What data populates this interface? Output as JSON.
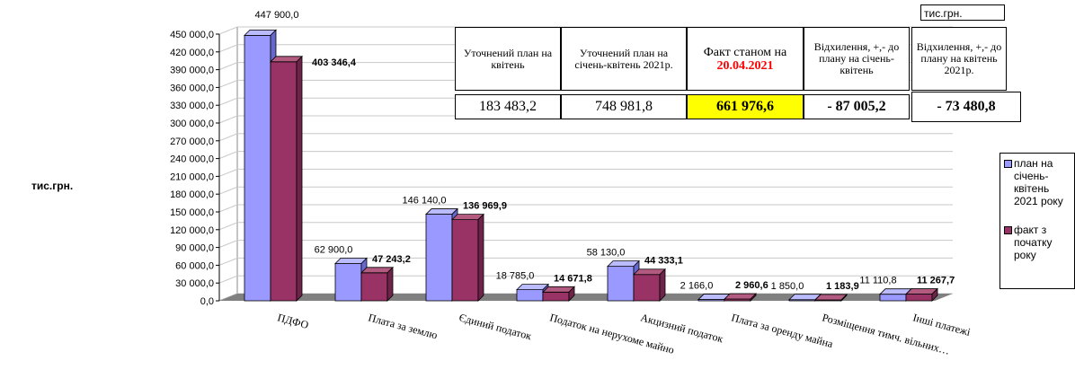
{
  "ylabel": "тис.грн.",
  "unit_label": "тис.грн.",
  "summary": {
    "headers": [
      "Уточнений план на квітень",
      "Уточнений план на січень-квітень 2021р.",
      "Факт станом на",
      "Відхилення, +,- до плану на січень-квітень",
      "Відхилення, +,- до плану на квітень 2021р."
    ],
    "fact_date": "20.04.2021",
    "values": [
      "183 483,2",
      "748 981,8",
      "661 976,6",
      "- 87 005,2",
      "- 73 480,8"
    ]
  },
  "colors": {
    "plan": "#9999ff",
    "fact": "#993366",
    "plan_top": "#bbbbff",
    "fact_top": "#b35a80",
    "floor": "#808080"
  },
  "chart_data": {
    "type": "bar",
    "categories": [
      "ПДФО",
      "Плата за землю",
      "Єдиний податок",
      "Податок на нерухоме майно",
      "Акцизний податок",
      "Плата за оренду майна",
      "Розміщення тимч. вільних…",
      "Інші платежі"
    ],
    "series": [
      {
        "name": "план на січень-квітень 2021 року",
        "values": [
          447900.0,
          62900.0,
          146140.0,
          18785.0,
          58130.0,
          2166.0,
          1850.0,
          11110.8
        ],
        "labels": [
          "447 900,0",
          "62 900,0",
          "146 140,0",
          "18 785,0",
          "58 130,0",
          "2 166,0",
          "1 850,0",
          "11 110,8"
        ]
      },
      {
        "name": "факт з початку року",
        "values": [
          403346.4,
          47243.2,
          136969.9,
          14671.8,
          44333.1,
          2960.6,
          1183.9,
          11267.7
        ],
        "labels": [
          "403 346,4",
          "47 243,2",
          "136 969,9",
          "14 671,8",
          "44 333,1",
          "2 960,6",
          "1 183,9",
          "11 267,7"
        ]
      }
    ],
    "yticks": [
      "0,0",
      "30 000,0",
      "60 000,0",
      "90 000,0",
      "120 000,0",
      "150 000,0",
      "180 000,0",
      "210 000,0",
      "240 000,0",
      "270 000,0",
      "300 000,0",
      "330 000,0",
      "360 000,0",
      "390 000,0",
      "420 000,0",
      "450 000,0"
    ],
    "ylim": [
      0,
      450000
    ],
    "grid": true,
    "legend_position": "right"
  }
}
